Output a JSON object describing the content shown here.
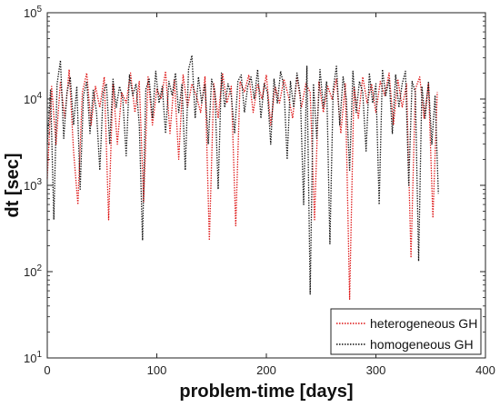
{
  "chart_data": {
    "type": "line",
    "title": "",
    "xlabel": "problem-time [days]",
    "ylabel": "dt [sec]",
    "xlim": [
      0,
      400
    ],
    "ylim_exp": [
      1,
      5
    ],
    "yscale": "log",
    "x_ticks": [
      "0",
      "100",
      "200",
      "300",
      "400"
    ],
    "y_ticks": [
      {
        "base": "10",
        "exp": "1"
      },
      {
        "base": "10",
        "exp": "2"
      },
      {
        "base": "10",
        "exp": "3"
      },
      {
        "base": "10",
        "exp": "4"
      },
      {
        "base": "10",
        "exp": "5"
      }
    ],
    "legend_position": "lower-right",
    "series": [
      {
        "name": "heterogeneous GH",
        "color": "#dd1111",
        "style": "dotted",
        "x": [
          0,
          4,
          8,
          12,
          16,
          20,
          24,
          28,
          32,
          36,
          40,
          44,
          48,
          52,
          56,
          60,
          64,
          68,
          72,
          76,
          80,
          84,
          88,
          92,
          96,
          100,
          104,
          108,
          112,
          116,
          120,
          124,
          128,
          132,
          136,
          140,
          144,
          148,
          152,
          156,
          160,
          164,
          168,
          172,
          176,
          180,
          184,
          188,
          192,
          196,
          200,
          204,
          208,
          212,
          216,
          220,
          224,
          228,
          232,
          236,
          240,
          244,
          248,
          252,
          256,
          260,
          264,
          268,
          272,
          276,
          280,
          284,
          288,
          292,
          296,
          300,
          304,
          308,
          312,
          316,
          320,
          324,
          328,
          332,
          336,
          340,
          344,
          348,
          352,
          356
        ],
        "y": [
          1200,
          14000,
          3000,
          16000,
          6000,
          22000,
          2500,
          600,
          12000,
          20000,
          5000,
          14000,
          8000,
          18000,
          400,
          15000,
          3000,
          12000,
          9000,
          20000,
          7000,
          16000,
          650,
          18000,
          5000,
          13000,
          10000,
          21000,
          4000,
          17000,
          2000,
          19000,
          8000,
          15000,
          11000,
          7000,
          18000,
          230,
          15000,
          6000,
          20000,
          9000,
          14000,
          340,
          16000,
          12000,
          19000,
          7000,
          15000,
          10000,
          19000,
          5000,
          14000,
          9000,
          17000,
          11000,
          6000,
          18000,
          8000,
          15000,
          12000,
          400,
          16000,
          7000,
          14000,
          10000,
          17000,
          4000,
          15000,
          48,
          14000,
          6000,
          18000,
          9000,
          15000,
          7000,
          16000,
          11000,
          20000,
          5000,
          17000,
          8000,
          15000,
          145,
          13000,
          18000,
          6000,
          15000,
          420,
          12000
        ]
      },
      {
        "name": "homogeneous GH",
        "color": "#111111",
        "style": "dotted",
        "x": [
          0,
          3,
          6,
          9,
          12,
          15,
          18,
          21,
          24,
          27,
          30,
          33,
          36,
          39,
          42,
          45,
          48,
          51,
          54,
          57,
          60,
          63,
          66,
          69,
          72,
          75,
          78,
          81,
          84,
          87,
          90,
          93,
          96,
          99,
          102,
          105,
          108,
          111,
          114,
          117,
          120,
          123,
          126,
          129,
          132,
          135,
          138,
          141,
          144,
          147,
          150,
          153,
          156,
          159,
          162,
          165,
          168,
          171,
          174,
          177,
          180,
          183,
          186,
          189,
          192,
          195,
          198,
          201,
          204,
          207,
          210,
          213,
          216,
          219,
          222,
          225,
          228,
          231,
          234,
          237,
          240,
          243,
          246,
          249,
          252,
          255,
          258,
          261,
          264,
          267,
          270,
          273,
          276,
          279,
          282,
          285,
          288,
          291,
          294,
          297,
          300,
          303,
          306,
          309,
          312,
          315,
          318,
          321,
          324,
          327,
          330,
          333,
          336,
          339,
          342,
          345,
          348,
          351,
          354,
          357
        ],
        "y": [
          3000,
          13000,
          400,
          15000,
          28000,
          3500,
          12000,
          18000,
          5000,
          14000,
          900,
          11000,
          16000,
          4000,
          13000,
          7000,
          1500,
          12000,
          15000,
          3000,
          17000,
          8000,
          14000,
          10000,
          2200,
          19000,
          11000,
          15000,
          5000,
          230,
          13000,
          17000,
          6000,
          21000,
          9000,
          14000,
          4000,
          16000,
          11000,
          20000,
          7000,
          15000,
          1500,
          22000,
          32000,
          6000,
          18000,
          9000,
          15000,
          3000,
          17000,
          12000,
          900,
          20000,
          8000,
          15000,
          11000,
          4000,
          16000,
          19000,
          7000,
          14000,
          18000,
          10000,
          22000,
          6000,
          15000,
          12000,
          3000,
          17000,
          9000,
          21000,
          14000,
          2000,
          16000,
          8000,
          20000,
          11000,
          600,
          24000,
          55,
          15000,
          3500,
          22000,
          8000,
          16000,
          210,
          13000,
          24000,
          5000,
          18000,
          10000,
          1500,
          21000,
          7000,
          16000,
          12000,
          2500,
          20000,
          9000,
          15000,
          600,
          22000,
          11000,
          17000,
          4000,
          19000,
          8000,
          15000,
          21000,
          1000,
          16000,
          12000,
          132,
          14000,
          6000,
          16000,
          3000,
          11000,
          800
        ]
      }
    ]
  }
}
